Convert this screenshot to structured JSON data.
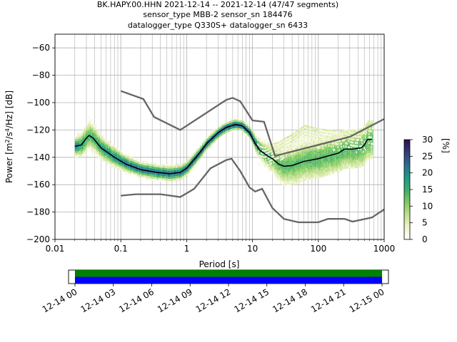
{
  "chart_data": {
    "type": "heatmap",
    "title_lines": [
      "BK.HAPY.00.HHN   2021-12-14 -- 2021-12-14  (47/47 segments)",
      "sensor_type MBB-2 sensor_sn 184476",
      "datalogger_type Q330S+ datalogger_sn 6433"
    ],
    "xlabel": "Period [s]",
    "ylabel_parts": {
      "pre": "Power [m",
      "sup1": "2",
      "mid": "/s",
      "sup2": "4",
      "post": "/Hz] [dB]"
    },
    "x_scale": "log",
    "xlim": [
      0.01,
      1000
    ],
    "ylim": [
      -200,
      -50
    ],
    "x_ticks": [
      {
        "value": 0.01,
        "label": "0.01"
      },
      {
        "value": 0.1,
        "label": "0.1"
      },
      {
        "value": 1,
        "label": "1"
      },
      {
        "value": 10,
        "label": "10"
      },
      {
        "value": 100,
        "label": "100"
      },
      {
        "value": 1000,
        "label": "1000"
      }
    ],
    "y_ticks": [
      {
        "value": -60,
        "label": "−60"
      },
      {
        "value": -80,
        "label": "−80"
      },
      {
        "value": -100,
        "label": "−100"
      },
      {
        "value": -120,
        "label": "−120"
      },
      {
        "value": -140,
        "label": "−140"
      },
      {
        "value": -160,
        "label": "−160"
      },
      {
        "value": -180,
        "label": "−180"
      },
      {
        "value": -200,
        "label": "−200"
      }
    ],
    "grid": true,
    "colorbar": {
      "label": "[%]",
      "range": [
        0,
        30
      ],
      "ticks": [
        {
          "value": 0,
          "label": "0"
        },
        {
          "value": 5,
          "label": "5"
        },
        {
          "value": 10,
          "label": "10"
        },
        {
          "value": 15,
          "label": "15"
        },
        {
          "value": 20,
          "label": "20"
        },
        {
          "value": 25,
          "label": "25"
        },
        {
          "value": 30,
          "label": "30"
        }
      ],
      "colormap_stops": [
        "#ffffff",
        "#eef3c8",
        "#bfe08a",
        "#7cc95f",
        "#3aae6e",
        "#1b9a86",
        "#2d6c8f",
        "#323b78",
        "#2f114d"
      ]
    },
    "nlnm": [
      [
        0.1,
        -168
      ],
      [
        0.17,
        -167
      ],
      [
        0.4,
        -167
      ],
      [
        0.8,
        -169
      ],
      [
        1.3,
        -163
      ],
      [
        2.3,
        -148
      ],
      [
        4.0,
        -142
      ],
      [
        4.8,
        -141
      ],
      [
        6.5,
        -150
      ],
      [
        9.0,
        -162
      ],
      [
        11,
        -165
      ],
      [
        14,
        -163
      ],
      [
        20,
        -177
      ],
      [
        30,
        -185
      ],
      [
        50,
        -187.5
      ],
      [
        100,
        -187.5
      ],
      [
        140,
        -185
      ],
      [
        250,
        -185
      ],
      [
        330,
        -187
      ],
      [
        650,
        -184
      ],
      [
        1000,
        -178
      ]
    ],
    "nhnm": [
      [
        0.1,
        -91.5
      ],
      [
        0.22,
        -97.4
      ],
      [
        0.32,
        -110.5
      ],
      [
        0.8,
        -120
      ],
      [
        4.0,
        -98
      ],
      [
        5.0,
        -96.5
      ],
      [
        6.5,
        -99
      ],
      [
        10,
        -113
      ],
      [
        15,
        -114
      ],
      [
        22,
        -139
      ],
      [
        300,
        -125
      ],
      [
        1000,
        -112
      ]
    ],
    "mode_line": [
      [
        0.02,
        -132
      ],
      [
        0.025,
        -131
      ],
      [
        0.03,
        -126
      ],
      [
        0.033,
        -124
      ],
      [
        0.038,
        -126
      ],
      [
        0.05,
        -133
      ],
      [
        0.08,
        -140
      ],
      [
        0.12,
        -145
      ],
      [
        0.2,
        -149
      ],
      [
        0.35,
        -151
      ],
      [
        0.55,
        -152
      ],
      [
        0.8,
        -151
      ],
      [
        1.0,
        -148
      ],
      [
        1.5,
        -138
      ],
      [
        2.0,
        -130
      ],
      [
        3.0,
        -122
      ],
      [
        4.0,
        -118
      ],
      [
        5.5,
        -116
      ],
      [
        7.0,
        -117
      ],
      [
        9.0,
        -122
      ],
      [
        11,
        -130
      ],
      [
        13,
        -135
      ],
      [
        17,
        -139
      ],
      [
        20,
        -141
      ],
      [
        25,
        -145
      ],
      [
        30,
        -146.5
      ],
      [
        40,
        -146
      ],
      [
        60,
        -143
      ],
      [
        100,
        -141
      ],
      [
        140,
        -139
      ],
      [
        200,
        -137
      ],
      [
        250,
        -134
      ],
      [
        330,
        -134
      ],
      [
        450,
        -133
      ],
      [
        500,
        -131
      ],
      [
        560,
        -127
      ],
      [
        650,
        -127
      ]
    ],
    "spread": {
      "band_left": [
        [
          0.02,
          0.5
        ],
        [
          0.033,
          1.0
        ],
        [
          0.05,
          0.7
        ],
        [
          0.15,
          0.35
        ],
        [
          0.7,
          0.35
        ],
        [
          1.5,
          0.25
        ],
        [
          5,
          0.15
        ],
        [
          9,
          0.2
        ],
        [
          13,
          0.55
        ],
        [
          30,
          1.4
        ],
        [
          100,
          1.6
        ],
        [
          650,
          1.8
        ]
      ],
      "secondary_offset": [
        [
          10,
          0
        ],
        [
          15,
          4
        ],
        [
          30,
          20
        ],
        [
          60,
          26
        ],
        [
          120,
          20
        ],
        [
          300,
          12
        ],
        [
          650,
          8
        ]
      ],
      "secondary_weight": [
        [
          10,
          0
        ],
        [
          14,
          0.3
        ],
        [
          40,
          0.45
        ],
        [
          150,
          0.35
        ],
        [
          400,
          0.25
        ],
        [
          650,
          0.2
        ]
      ],
      "cells": 260
    },
    "time_axis": {
      "tick_labels": [
        "12-14 00",
        "12-14 03",
        "12-14 06",
        "12-14 09",
        "12-14 12",
        "12-14 15",
        "12-14 18",
        "12-14 21",
        "12-15 00"
      ],
      "range_hours": [
        -0.5,
        24.5
      ],
      "coverage_hours": [
        0,
        24
      ],
      "bars": [
        {
          "name": "data",
          "color": "#0000ff"
        },
        {
          "name": "gaps-free",
          "color": "#008000"
        }
      ]
    }
  }
}
